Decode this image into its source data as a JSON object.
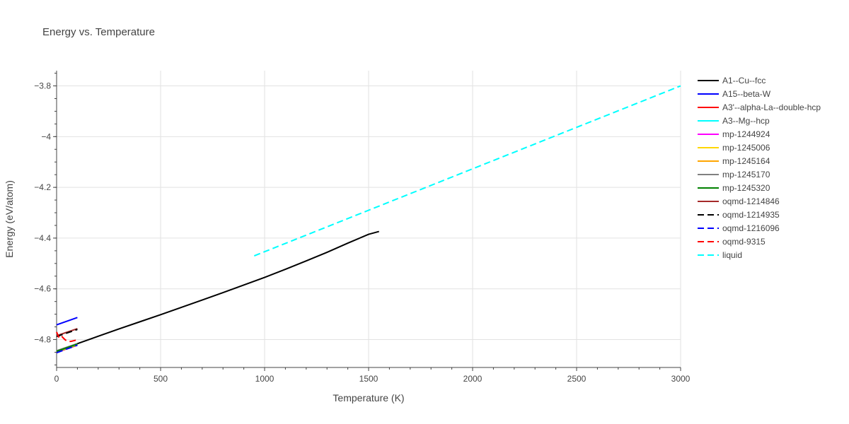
{
  "chart_data": {
    "type": "line",
    "title": "Energy vs. Temperature",
    "xlabel": "Temperature (K)",
    "ylabel": "Energy (eV/atom)",
    "xlim": [
      0,
      3000
    ],
    "ylim": [
      -4.91,
      -3.74
    ],
    "x_ticks": [
      0,
      500,
      1000,
      1500,
      2000,
      2500,
      3000
    ],
    "x_tick_labels": [
      "0",
      "500",
      "1000",
      "1500",
      "2000",
      "2500",
      "3000"
    ],
    "y_ticks": [
      -3.8,
      -4.0,
      -4.2,
      -4.4,
      -4.6,
      -4.8
    ],
    "y_tick_labels": [
      "−3.8",
      "−4",
      "−4.2",
      "−4.4",
      "−4.6",
      "−4.8"
    ],
    "grid": true,
    "legend_position": "right",
    "series": [
      {
        "name": "A1--Cu--fcc",
        "color": "#000000",
        "dash": "solid",
        "x": [
          0,
          100,
          200,
          300,
          400,
          500,
          600,
          700,
          800,
          900,
          1000,
          1100,
          1200,
          1300,
          1400,
          1500,
          1550
        ],
        "y": [
          -4.845,
          -4.816,
          -4.787,
          -4.758,
          -4.73,
          -4.702,
          -4.673,
          -4.644,
          -4.615,
          -4.585,
          -4.555,
          -4.523,
          -4.49,
          -4.456,
          -4.42,
          -4.385,
          -4.374
        ]
      },
      {
        "name": "A15--beta-W",
        "color": "#0000ff",
        "dash": "solid",
        "x": [
          0,
          100
        ],
        "y": [
          -4.742,
          -4.713
        ]
      },
      {
        "name": "A3'--alpha-La--double-hcp",
        "color": "#ff0000",
        "dash": "solid",
        "x": [
          0,
          100
        ],
        "y": [
          -4.85,
          -4.822
        ]
      },
      {
        "name": "A3--Mg--hcp",
        "color": "#00ffff",
        "dash": "solid",
        "x": [
          0,
          100
        ],
        "y": [
          -4.848,
          -4.82
        ]
      },
      {
        "name": "mp-1244924",
        "color": "#ff00ff",
        "dash": "solid",
        "x": [
          0,
          100
        ],
        "y": [
          -4.846,
          -4.818
        ]
      },
      {
        "name": "mp-1245006",
        "color": "#ffd700",
        "dash": "solid",
        "x": [
          0,
          100
        ],
        "y": [
          -4.847,
          -4.819
        ]
      },
      {
        "name": "mp-1245164",
        "color": "#ffa500",
        "dash": "solid",
        "x": [
          0,
          100
        ],
        "y": [
          -4.845,
          -4.817
        ]
      },
      {
        "name": "mp-1245170",
        "color": "#808080",
        "dash": "solid",
        "x": [
          0,
          100
        ],
        "y": [
          -4.844,
          -4.816
        ]
      },
      {
        "name": "mp-1245320",
        "color": "#008000",
        "dash": "solid",
        "x": [
          0,
          100
        ],
        "y": [
          -4.846,
          -4.818
        ]
      },
      {
        "name": "oqmd-1214846",
        "color": "#a52a2a",
        "dash": "solid",
        "x": [
          0,
          100
        ],
        "y": [
          -4.785,
          -4.757
        ]
      },
      {
        "name": "oqmd-1214935",
        "color": "#000000",
        "dash": "dash",
        "x": [
          0,
          100
        ],
        "y": [
          -4.788,
          -4.76
        ]
      },
      {
        "name": "oqmd-1216096",
        "color": "#0000ff",
        "dash": "dash",
        "x": [
          0,
          100
        ],
        "y": [
          -4.852,
          -4.822
        ]
      },
      {
        "name": "oqmd-9315",
        "color": "#ff0000",
        "dash": "dash",
        "x": [
          0,
          10,
          20,
          30,
          40,
          50,
          60,
          70,
          80,
          90,
          100
        ],
        "y": [
          -4.77,
          -4.79,
          -4.782,
          -4.792,
          -4.8,
          -4.806,
          -4.808,
          -4.807,
          -4.805,
          -4.803,
          -4.8
        ]
      },
      {
        "name": "liquid",
        "color": "#00ffff",
        "dash": "dash",
        "x": [
          950,
          3000
        ],
        "y": [
          -4.47,
          -3.8
        ]
      }
    ]
  }
}
